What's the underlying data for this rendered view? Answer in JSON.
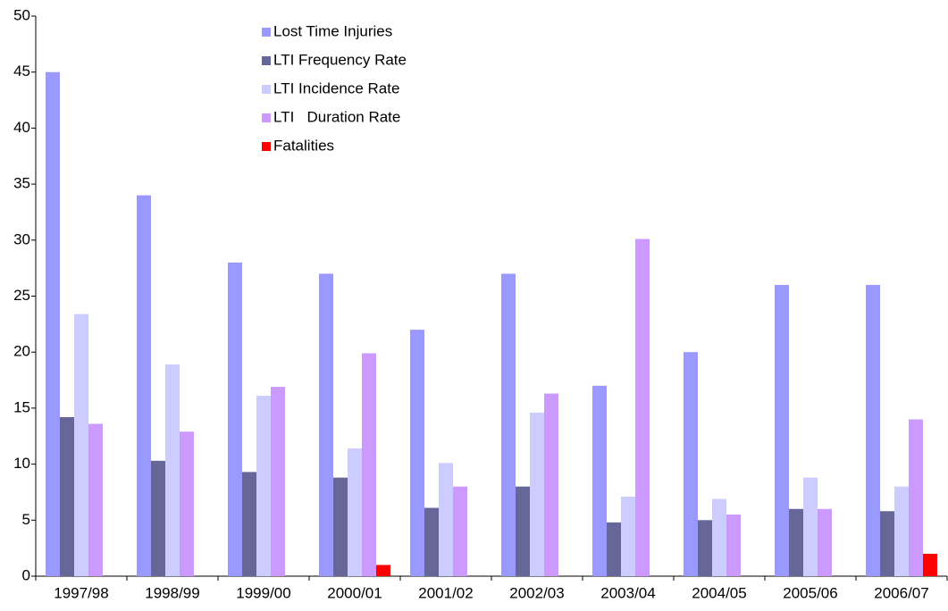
{
  "chart_data": {
    "type": "bar",
    "categories": [
      "1997/98",
      "1998/99",
      "1999/00",
      "2000/01",
      "2001/02",
      "2002/03",
      "2003/04",
      "2004/05",
      "2005/06",
      "2006/07"
    ],
    "series": [
      {
        "name": "Lost Time Injuries",
        "color": "#9999ff",
        "values": [
          45,
          34,
          28,
          27,
          22,
          27,
          17,
          20,
          26,
          26
        ]
      },
      {
        "name": "LTI Frequency Rate",
        "color": "#666699",
        "values": [
          14.2,
          10.3,
          9.3,
          8.8,
          6.1,
          8.0,
          4.8,
          5.0,
          6.0,
          5.8
        ]
      },
      {
        "name": "LTI Incidence Rate",
        "color": "#ccccff",
        "values": [
          23.4,
          18.9,
          16.1,
          11.4,
          10.1,
          14.6,
          7.1,
          6.9,
          8.8,
          8.0
        ]
      },
      {
        "name": "LTI   Duration Rate",
        "color": "#cc99ff",
        "values": [
          13.6,
          12.9,
          16.9,
          19.9,
          8.0,
          16.3,
          30.1,
          5.5,
          6.0,
          14.0
        ]
      },
      {
        "name": "Fatalities",
        "color": "#ff0000",
        "values": [
          0,
          0,
          0,
          1,
          0,
          0,
          0,
          0,
          0,
          2
        ]
      }
    ],
    "ylim": [
      0,
      50
    ],
    "yticks": [
      0,
      5,
      10,
      15,
      20,
      25,
      30,
      35,
      40,
      45,
      50
    ],
    "grid": false,
    "legend": "top"
  }
}
